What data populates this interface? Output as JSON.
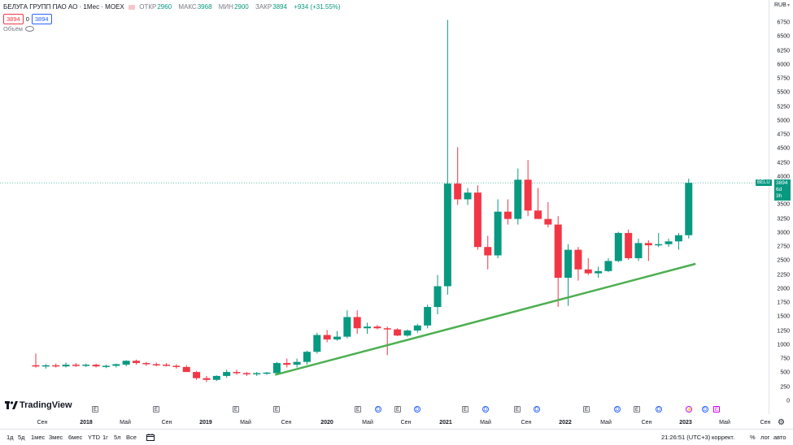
{
  "header": {
    "title": "БЕЛУГА ГРУПП ПАО АО · 1Мес · MOEX",
    "ohlc": [
      {
        "label": "ОТКР",
        "value": "2960"
      },
      {
        "label": "МАКС",
        "value": "3968"
      },
      {
        "label": "МИН",
        "value": "2900"
      },
      {
        "label": "ЗАКР",
        "value": "3894"
      }
    ],
    "change": "+934 (+31.55%)",
    "sell_price": "3894",
    "spread": "0",
    "buy_price": "3894",
    "volume_label": "Объём"
  },
  "price_axis": {
    "currency": "RUB",
    "ticks": [
      "6750",
      "6500",
      "6250",
      "6000",
      "5750",
      "5500",
      "5250",
      "5000",
      "4750",
      "4500",
      "4250",
      "4000",
      "3750",
      "3500",
      "3250",
      "3000",
      "2750",
      "2500",
      "2250",
      "2000",
      "1750",
      "1500",
      "1250",
      "1000",
      "750",
      "500",
      "250",
      "0"
    ],
    "last_price_symbol": "BELU",
    "last_price": "3894",
    "countdown": "6d 3h"
  },
  "time_axis": {
    "labels": [
      {
        "text": "Сен",
        "kind": "mon"
      },
      {
        "text": "2018",
        "kind": "year"
      },
      {
        "text": "Май",
        "kind": "mon"
      },
      {
        "text": "Сен",
        "kind": "mon"
      },
      {
        "text": "2019",
        "kind": "year"
      },
      {
        "text": "Май",
        "kind": "mon"
      },
      {
        "text": "Сен",
        "kind": "mon"
      },
      {
        "text": "2020",
        "kind": "year"
      },
      {
        "text": "Май",
        "kind": "mon"
      },
      {
        "text": "Сен",
        "kind": "mon"
      },
      {
        "text": "2021",
        "kind": "year"
      },
      {
        "text": "Май",
        "kind": "mon"
      },
      {
        "text": "Сен",
        "kind": "mon"
      },
      {
        "text": "2022",
        "kind": "year"
      },
      {
        "text": "Май",
        "kind": "mon"
      },
      {
        "text": "Сен",
        "kind": "mon"
      },
      {
        "text": "2023",
        "kind": "year"
      },
      {
        "text": "Май",
        "kind": "mon"
      },
      {
        "text": "Сен",
        "kind": "mon"
      }
    ],
    "events": [
      {
        "kind": "e",
        "text": "E"
      },
      {
        "kind": "e",
        "text": "E"
      },
      {
        "kind": "e",
        "text": "E"
      },
      {
        "kind": "e",
        "text": "E"
      },
      {
        "kind": "e",
        "text": "E"
      },
      {
        "kind": "d",
        "text": "D"
      },
      {
        "kind": "e",
        "text": "E"
      },
      {
        "kind": "d",
        "text": "D"
      },
      {
        "kind": "e",
        "text": "E"
      },
      {
        "kind": "d",
        "text": "D"
      },
      {
        "kind": "e",
        "text": "E"
      },
      {
        "kind": "d",
        "text": "D"
      },
      {
        "kind": "e",
        "text": "E"
      },
      {
        "kind": "d",
        "text": "D"
      },
      {
        "kind": "e",
        "text": "E"
      },
      {
        "kind": "d",
        "text": "D"
      },
      {
        "kind": "s",
        "text": "⚡"
      },
      {
        "kind": "d",
        "text": "D"
      },
      {
        "kind": "em",
        "text": "E"
      }
    ]
  },
  "logo": "TradingView",
  "toolbar": {
    "ranges": [
      "1д",
      "5д",
      "1мес",
      "3мес",
      "6мес",
      "YTD",
      "1г",
      "5л",
      "Все"
    ],
    "clock": "21:26:51 (UTC+3)",
    "adjust": "коррект.",
    "percent": "%",
    "log": "лог",
    "auto": "авто"
  },
  "colors": {
    "up": "#089981",
    "down": "#f23645",
    "trendline": "#4caf50",
    "text": "#131722"
  },
  "chart_data": {
    "type": "candlestick",
    "title": "БЕЛУГА ГРУПП ПАО АО · 1Мес · MOEX",
    "ylim": [
      0,
      7000
    ],
    "candles": [
      {
        "o": 640,
        "h": 850,
        "l": 600,
        "c": 620
      },
      {
        "o": 620,
        "h": 660,
        "l": 580,
        "c": 640
      },
      {
        "o": 640,
        "h": 670,
        "l": 600,
        "c": 620
      },
      {
        "o": 620,
        "h": 690,
        "l": 600,
        "c": 650
      },
      {
        "o": 650,
        "h": 680,
        "l": 610,
        "c": 640
      },
      {
        "o": 640,
        "h": 670,
        "l": 610,
        "c": 650
      },
      {
        "o": 650,
        "h": 670,
        "l": 600,
        "c": 620
      },
      {
        "o": 620,
        "h": 650,
        "l": 590,
        "c": 630
      },
      {
        "o": 630,
        "h": 670,
        "l": 600,
        "c": 660
      },
      {
        "o": 650,
        "h": 730,
        "l": 620,
        "c": 720
      },
      {
        "o": 720,
        "h": 740,
        "l": 650,
        "c": 680
      },
      {
        "o": 680,
        "h": 700,
        "l": 630,
        "c": 660
      },
      {
        "o": 660,
        "h": 690,
        "l": 620,
        "c": 650
      },
      {
        "o": 650,
        "h": 680,
        "l": 620,
        "c": 630
      },
      {
        "o": 630,
        "h": 660,
        "l": 580,
        "c": 610
      },
      {
        "o": 610,
        "h": 640,
        "l": 520,
        "c": 520
      },
      {
        "o": 520,
        "h": 540,
        "l": 380,
        "c": 410
      },
      {
        "o": 410,
        "h": 450,
        "l": 340,
        "c": 380
      },
      {
        "o": 380,
        "h": 460,
        "l": 360,
        "c": 450
      },
      {
        "o": 450,
        "h": 560,
        "l": 420,
        "c": 520
      },
      {
        "o": 520,
        "h": 560,
        "l": 470,
        "c": 500
      },
      {
        "o": 500,
        "h": 520,
        "l": 450,
        "c": 480
      },
      {
        "o": 480,
        "h": 520,
        "l": 450,
        "c": 500
      },
      {
        "o": 500,
        "h": 520,
        "l": 470,
        "c": 510
      },
      {
        "o": 500,
        "h": 700,
        "l": 480,
        "c": 680
      },
      {
        "o": 680,
        "h": 760,
        "l": 600,
        "c": 650
      },
      {
        "o": 650,
        "h": 760,
        "l": 600,
        "c": 700
      },
      {
        "o": 700,
        "h": 900,
        "l": 650,
        "c": 880
      },
      {
        "o": 880,
        "h": 1220,
        "l": 850,
        "c": 1180
      },
      {
        "o": 1180,
        "h": 1270,
        "l": 1050,
        "c": 1100
      },
      {
        "o": 1100,
        "h": 1250,
        "l": 1080,
        "c": 1150
      },
      {
        "o": 1150,
        "h": 1620,
        "l": 1120,
        "c": 1500
      },
      {
        "o": 1500,
        "h": 1620,
        "l": 1200,
        "c": 1300
      },
      {
        "o": 1300,
        "h": 1400,
        "l": 1200,
        "c": 1330
      },
      {
        "o": 1330,
        "h": 1360,
        "l": 1280,
        "c": 1300
      },
      {
        "o": 1300,
        "h": 1330,
        "l": 820,
        "c": 1280
      },
      {
        "o": 1280,
        "h": 1300,
        "l": 1160,
        "c": 1170
      },
      {
        "o": 1170,
        "h": 1280,
        "l": 1150,
        "c": 1260
      },
      {
        "o": 1260,
        "h": 1380,
        "l": 1220,
        "c": 1350
      },
      {
        "o": 1350,
        "h": 1720,
        "l": 1300,
        "c": 1680
      },
      {
        "o": 1680,
        "h": 2250,
        "l": 1550,
        "c": 2050
      },
      {
        "o": 2050,
        "h": 6800,
        "l": 1900,
        "c": 3880
      },
      {
        "o": 3880,
        "h": 4530,
        "l": 3500,
        "c": 3600
      },
      {
        "o": 3600,
        "h": 3800,
        "l": 3500,
        "c": 3720
      },
      {
        "o": 3720,
        "h": 3850,
        "l": 2700,
        "c": 2750
      },
      {
        "o": 2750,
        "h": 2950,
        "l": 2350,
        "c": 2600
      },
      {
        "o": 2600,
        "h": 3600,
        "l": 2550,
        "c": 3380
      },
      {
        "o": 3380,
        "h": 3600,
        "l": 3150,
        "c": 3250
      },
      {
        "o": 3250,
        "h": 4150,
        "l": 3150,
        "c": 3950
      },
      {
        "o": 3950,
        "h": 4300,
        "l": 3300,
        "c": 3400
      },
      {
        "o": 3400,
        "h": 3800,
        "l": 3250,
        "c": 3250
      },
      {
        "o": 3250,
        "h": 3550,
        "l": 3100,
        "c": 3150
      },
      {
        "o": 3150,
        "h": 3300,
        "l": 1680,
        "c": 2200
      },
      {
        "o": 2200,
        "h": 2800,
        "l": 1700,
        "c": 2700
      },
      {
        "o": 2700,
        "h": 2750,
        "l": 2150,
        "c": 2350
      },
      {
        "o": 2350,
        "h": 2550,
        "l": 2250,
        "c": 2280
      },
      {
        "o": 2280,
        "h": 2400,
        "l": 2200,
        "c": 2320
      },
      {
        "o": 2320,
        "h": 2550,
        "l": 2300,
        "c": 2500
      },
      {
        "o": 2500,
        "h": 3020,
        "l": 2480,
        "c": 3000
      },
      {
        "o": 3000,
        "h": 3060,
        "l": 2520,
        "c": 2550
      },
      {
        "o": 2550,
        "h": 2900,
        "l": 2500,
        "c": 2820
      },
      {
        "o": 2820,
        "h": 2870,
        "l": 2500,
        "c": 2780
      },
      {
        "o": 2780,
        "h": 3000,
        "l": 2750,
        "c": 2800
      },
      {
        "o": 2800,
        "h": 2900,
        "l": 2750,
        "c": 2850
      },
      {
        "o": 2850,
        "h": 3000,
        "l": 2700,
        "c": 2960
      },
      {
        "o": 2960,
        "h": 3968,
        "l": 2900,
        "c": 3894
      }
    ],
    "trendline": [
      {
        "x": 0.358,
        "y": 470
      },
      {
        "x": 0.905,
        "y": 2450
      }
    ],
    "current_price": 3894
  }
}
